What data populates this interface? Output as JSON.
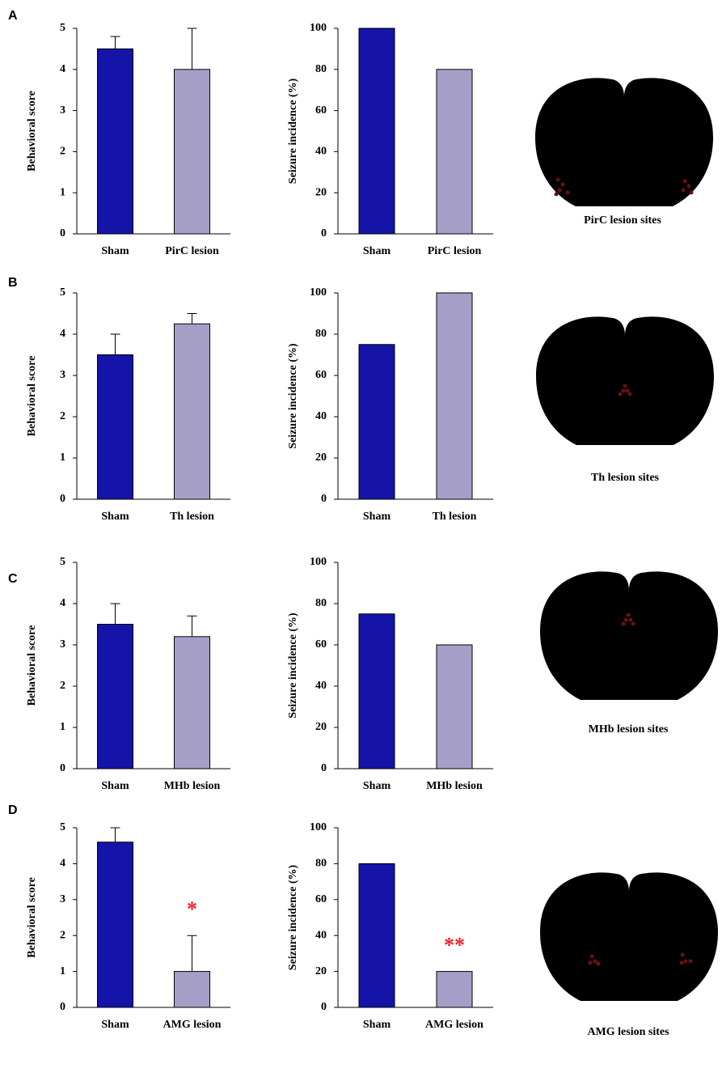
{
  "panel_labels": [
    "A",
    "B",
    "C",
    "D"
  ],
  "diagram_captions": [
    "PirC lesion sites",
    "Th lesion sites",
    "MHb  lesion sites",
    "AMG  lesion sites"
  ],
  "chart_data": [
    {
      "type": "bar",
      "ylabel": "Behavioral score",
      "categories": [
        "Sham",
        "PirC lesion"
      ],
      "values": [
        4.5,
        4.0
      ],
      "errors": [
        0.3,
        1.0
      ],
      "colors": [
        "#1414a8",
        "#a59fc8"
      ],
      "ylim": [
        0,
        5
      ],
      "yticks": [
        0,
        1,
        2,
        3,
        4,
        5
      ]
    },
    {
      "type": "bar",
      "ylabel": "Seizure incidence (%)",
      "categories": [
        "Sham",
        "PirC lesion"
      ],
      "values": [
        100,
        80
      ],
      "colors": [
        "#1414a8",
        "#a59fc8"
      ],
      "ylim": [
        0,
        100
      ],
      "yticks": [
        0,
        20,
        40,
        60,
        80,
        100
      ]
    },
    {
      "type": "bar",
      "ylabel": "Behavioral score",
      "categories": [
        "Sham",
        "Th lesion"
      ],
      "values": [
        3.5,
        4.25
      ],
      "errors": [
        0.5,
        0.25
      ],
      "colors": [
        "#1414a8",
        "#a59fc8"
      ],
      "ylim": [
        0,
        5
      ],
      "yticks": [
        0,
        1,
        2,
        3,
        4,
        5
      ]
    },
    {
      "type": "bar",
      "ylabel": "Seizure incidence (%)",
      "categories": [
        "Sham",
        "Th lesion"
      ],
      "values": [
        75,
        100
      ],
      "colors": [
        "#1414a8",
        "#a59fc8"
      ],
      "ylim": [
        0,
        100
      ],
      "yticks": [
        0,
        20,
        40,
        60,
        80,
        100
      ]
    },
    {
      "type": "bar",
      "ylabel": "Behavioral score",
      "categories": [
        "Sham",
        "MHb lesion"
      ],
      "values": [
        3.5,
        3.2
      ],
      "errors": [
        0.5,
        0.5
      ],
      "colors": [
        "#1414a8",
        "#a59fc8"
      ],
      "ylim": [
        0,
        5
      ],
      "yticks": [
        0,
        1,
        2,
        3,
        4,
        5
      ]
    },
    {
      "type": "bar",
      "ylabel": "Seizure incidence (%)",
      "categories": [
        "Sham",
        "MHb lesion"
      ],
      "values": [
        75,
        60
      ],
      "colors": [
        "#1414a8",
        "#a59fc8"
      ],
      "ylim": [
        0,
        100
      ],
      "yticks": [
        0,
        20,
        40,
        60,
        80,
        100
      ]
    },
    {
      "type": "bar",
      "ylabel": "Behavioral score",
      "categories": [
        "Sham",
        "AMG lesion"
      ],
      "values": [
        4.6,
        1.0
      ],
      "errors": [
        0.4,
        1.0
      ],
      "colors": [
        "#1414a8",
        "#a59fc8"
      ],
      "ylim": [
        0,
        5
      ],
      "yticks": [
        0,
        1,
        2,
        3,
        4,
        5
      ],
      "annotations": [
        {
          "text": "*",
          "category": "AMG lesion",
          "color": "#e8202a"
        }
      ]
    },
    {
      "type": "bar",
      "ylabel": "Seizure incidence (%)",
      "categories": [
        "Sham",
        "AMG lesion"
      ],
      "values": [
        80,
        20
      ],
      "colors": [
        "#1414a8",
        "#a59fc8"
      ],
      "ylim": [
        0,
        100
      ],
      "yticks": [
        0,
        20,
        40,
        60,
        80,
        100
      ],
      "annotations": [
        {
          "text": "**",
          "category": "AMG lesion",
          "color": "#e8202a"
        }
      ]
    }
  ]
}
